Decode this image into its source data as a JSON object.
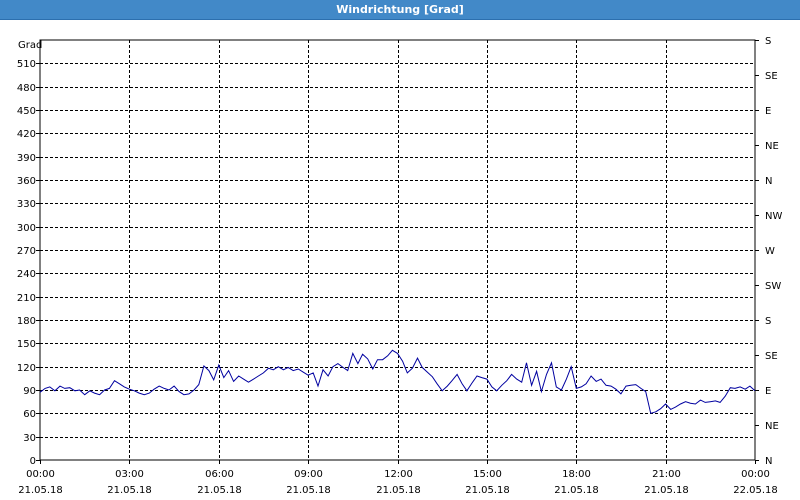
{
  "window": {
    "title": "Windrichtung [Grad]"
  },
  "chart_data": {
    "type": "line",
    "title": "Windrichtung [Grad]",
    "ylabel": "Grad",
    "ylim": [
      0,
      540
    ],
    "y_ticks": [
      0,
      30,
      60,
      90,
      120,
      150,
      180,
      210,
      240,
      270,
      300,
      330,
      360,
      390,
      420,
      450,
      480,
      510
    ],
    "y2_ticks": [
      {
        "value": 0,
        "label": "N"
      },
      {
        "value": 45,
        "label": "NE"
      },
      {
        "value": 90,
        "label": "E"
      },
      {
        "value": 135,
        "label": "SE"
      },
      {
        "value": 180,
        "label": "S"
      },
      {
        "value": 225,
        "label": "SW"
      },
      {
        "value": 270,
        "label": "W"
      },
      {
        "value": 315,
        "label": "NW"
      },
      {
        "value": 360,
        "label": "N"
      },
      {
        "value": 405,
        "label": "NE"
      },
      {
        "value": 450,
        "label": "E"
      },
      {
        "value": 495,
        "label": "SE"
      },
      {
        "value": 540,
        "label": "S"
      }
    ],
    "xlim": [
      0,
      24
    ],
    "x_ticks": [
      {
        "value": 0,
        "time": "00:00",
        "date": "21.05.18"
      },
      {
        "value": 3,
        "time": "03:00",
        "date": "21.05.18"
      },
      {
        "value": 6,
        "time": "06:00",
        "date": "21.05.18"
      },
      {
        "value": 9,
        "time": "09:00",
        "date": "21.05.18"
      },
      {
        "value": 12,
        "time": "12:00",
        "date": "21.05.18"
      },
      {
        "value": 15,
        "time": "15:00",
        "date": "21.05.18"
      },
      {
        "value": 18,
        "time": "18:00",
        "date": "21.05.18"
      },
      {
        "value": 21,
        "time": "21:00",
        "date": "21.05.18"
      },
      {
        "value": 24,
        "time": "00:00",
        "date": "22.05.18"
      }
    ],
    "grid": true,
    "line_color": "#0000a0",
    "series": [
      {
        "points": [
          [
            0.0,
            87
          ],
          [
            0.17,
            92
          ],
          [
            0.33,
            94
          ],
          [
            0.5,
            89
          ],
          [
            0.67,
            95
          ],
          [
            0.83,
            92
          ],
          [
            1.0,
            93
          ],
          [
            1.17,
            89
          ],
          [
            1.33,
            90
          ],
          [
            1.5,
            84
          ],
          [
            1.67,
            89
          ],
          [
            1.83,
            86
          ],
          [
            2.0,
            84
          ],
          [
            2.17,
            90
          ],
          [
            2.33,
            92
          ],
          [
            2.5,
            102
          ],
          [
            2.67,
            98
          ],
          [
            2.83,
            94
          ],
          [
            3.0,
            91
          ],
          [
            3.17,
            89
          ],
          [
            3.33,
            86
          ],
          [
            3.5,
            84
          ],
          [
            3.67,
            86
          ],
          [
            3.83,
            91
          ],
          [
            4.0,
            95
          ],
          [
            4.17,
            92
          ],
          [
            4.33,
            90
          ],
          [
            4.5,
            95
          ],
          [
            4.67,
            88
          ],
          [
            4.83,
            84
          ],
          [
            5.0,
            85
          ],
          [
            5.17,
            90
          ],
          [
            5.33,
            97
          ],
          [
            5.5,
            121
          ],
          [
            5.67,
            115
          ],
          [
            5.83,
            103
          ],
          [
            6.0,
            122
          ],
          [
            6.17,
            106
          ],
          [
            6.33,
            115
          ],
          [
            6.5,
            101
          ],
          [
            6.67,
            108
          ],
          [
            6.83,
            104
          ],
          [
            7.0,
            100
          ],
          [
            7.17,
            104
          ],
          [
            7.33,
            108
          ],
          [
            7.5,
            112
          ],
          [
            7.67,
            118
          ],
          [
            7.83,
            116
          ],
          [
            8.0,
            120
          ],
          [
            8.17,
            116
          ],
          [
            8.33,
            119
          ],
          [
            8.5,
            115
          ],
          [
            8.67,
            117
          ],
          [
            8.83,
            113
          ],
          [
            9.0,
            109
          ],
          [
            9.17,
            112
          ],
          [
            9.33,
            95
          ],
          [
            9.5,
            116
          ],
          [
            9.67,
            108
          ],
          [
            9.83,
            120
          ],
          [
            10.0,
            124
          ],
          [
            10.17,
            119
          ],
          [
            10.33,
            115
          ],
          [
            10.5,
            137
          ],
          [
            10.67,
            124
          ],
          [
            10.83,
            136
          ],
          [
            11.0,
            130
          ],
          [
            11.17,
            117
          ],
          [
            11.33,
            129
          ],
          [
            11.5,
            129
          ],
          [
            11.67,
            134
          ],
          [
            11.83,
            141
          ],
          [
            12.0,
            137
          ],
          [
            12.17,
            127
          ],
          [
            12.33,
            112
          ],
          [
            12.5,
            118
          ],
          [
            12.67,
            131
          ],
          [
            12.83,
            119
          ],
          [
            13.0,
            113
          ],
          [
            13.17,
            107
          ],
          [
            13.33,
            98
          ],
          [
            13.5,
            89
          ],
          [
            13.67,
            95
          ],
          [
            13.83,
            102
          ],
          [
            14.0,
            110
          ],
          [
            14.17,
            98
          ],
          [
            14.33,
            89
          ],
          [
            14.5,
            99
          ],
          [
            14.67,
            108
          ],
          [
            14.83,
            106
          ],
          [
            15.0,
            104
          ],
          [
            15.17,
            94
          ],
          [
            15.33,
            89
          ],
          [
            15.5,
            96
          ],
          [
            15.67,
            102
          ],
          [
            15.83,
            110
          ],
          [
            16.0,
            104
          ],
          [
            16.17,
            100
          ],
          [
            16.33,
            125
          ],
          [
            16.5,
            96
          ],
          [
            16.67,
            114
          ],
          [
            16.83,
            88
          ],
          [
            17.0,
            110
          ],
          [
            17.17,
            125
          ],
          [
            17.33,
            94
          ],
          [
            17.5,
            90
          ],
          [
            17.67,
            104
          ],
          [
            17.83,
            120
          ],
          [
            18.0,
            92
          ],
          [
            18.17,
            94
          ],
          [
            18.33,
            98
          ],
          [
            18.5,
            108
          ],
          [
            18.67,
            101
          ],
          [
            18.83,
            104
          ],
          [
            19.0,
            96
          ],
          [
            19.17,
            95
          ],
          [
            19.33,
            91
          ],
          [
            19.5,
            85
          ],
          [
            19.67,
            95
          ],
          [
            19.83,
            96
          ],
          [
            20.0,
            97
          ],
          [
            20.17,
            92
          ],
          [
            20.33,
            88
          ],
          [
            20.5,
            60
          ],
          [
            20.67,
            62
          ],
          [
            20.83,
            66
          ],
          [
            21.0,
            72
          ],
          [
            21.17,
            65
          ],
          [
            21.33,
            68
          ],
          [
            21.5,
            72
          ],
          [
            21.67,
            75
          ],
          [
            21.83,
            73
          ],
          [
            22.0,
            72
          ],
          [
            22.17,
            77
          ],
          [
            22.33,
            74
          ],
          [
            22.5,
            75
          ],
          [
            22.67,
            76
          ],
          [
            22.83,
            74
          ],
          [
            23.0,
            82
          ],
          [
            23.17,
            93
          ],
          [
            23.33,
            92
          ],
          [
            23.5,
            94
          ],
          [
            23.67,
            91
          ],
          [
            23.83,
            95
          ],
          [
            24.0,
            89
          ]
        ]
      }
    ]
  }
}
